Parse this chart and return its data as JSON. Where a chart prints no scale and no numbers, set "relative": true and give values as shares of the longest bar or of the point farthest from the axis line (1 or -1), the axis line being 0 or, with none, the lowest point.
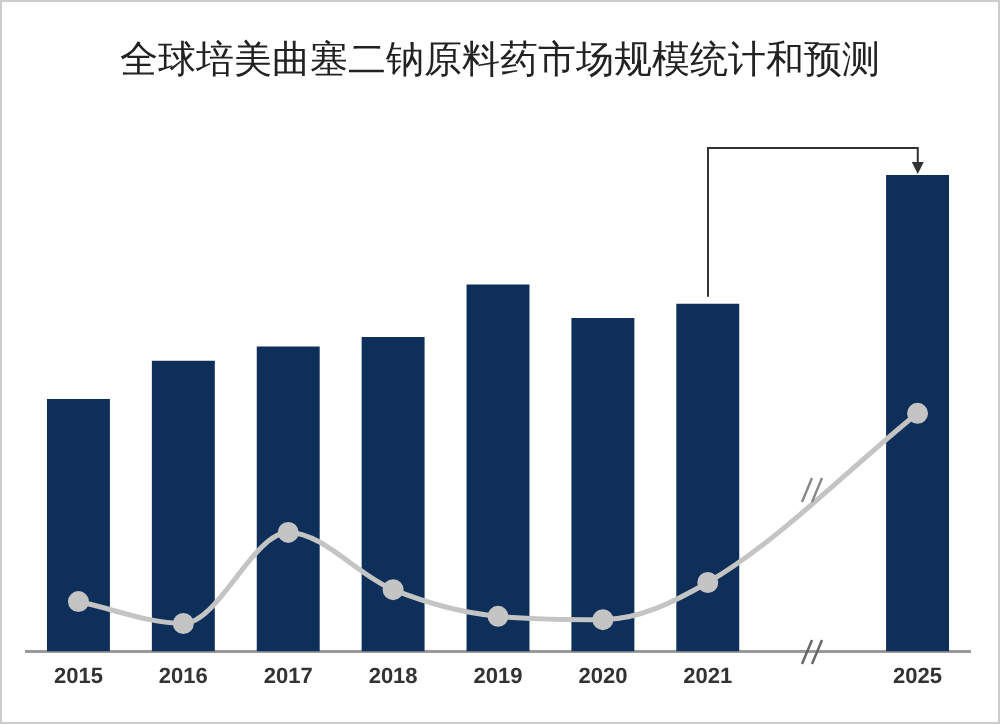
{
  "chart_data": {
    "type": "bar",
    "title": "全球培美曲塞二钠原料药市场规模统计和预测",
    "categories": [
      "2015",
      "2016",
      "2017",
      "2018",
      "2019",
      "2020",
      "2021",
      null,
      "2025"
    ],
    "relative": true,
    "grid": false,
    "legend": false,
    "series": [
      {
        "color": "#0d2f5a",
        "values": [
          0.53,
          0.61,
          0.64,
          0.66,
          0.77,
          0.7,
          0.73,
          null,
          1
        ]
      },
      {
        "type": "line",
        "color": "#c4c4c4",
        "marker": "circle",
        "values": [
          0.105,
          0.059,
          0.25,
          0.13,
          0.074,
          0.067,
          0.145,
          null,
          0.5
        ]
      }
    ]
  }
}
